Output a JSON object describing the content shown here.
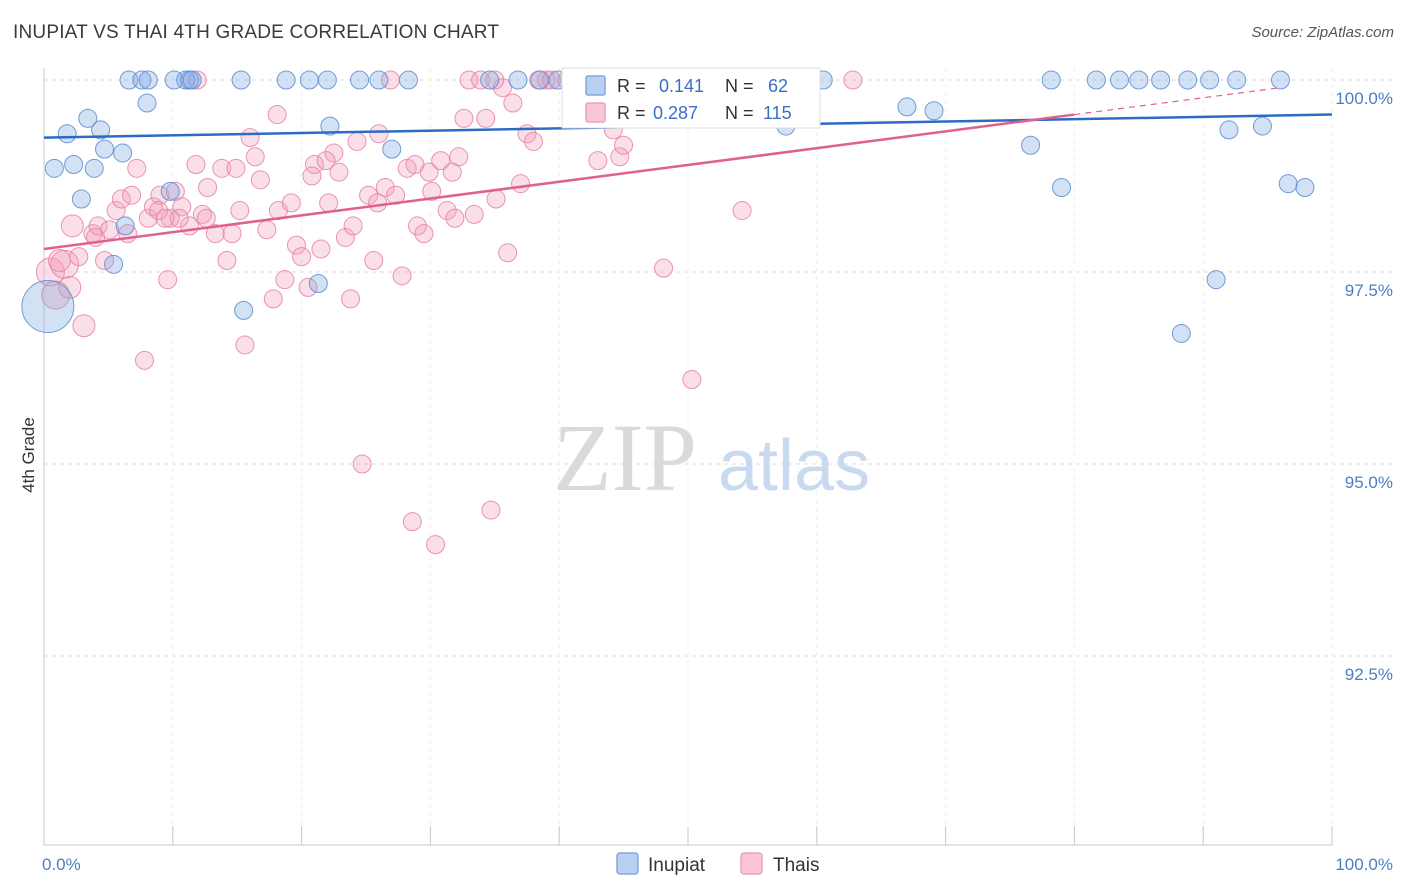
{
  "title": "INUPIAT VS THAI 4TH GRADE CORRELATION CHART",
  "source": "Source: ZipAtlas.com",
  "watermark": {
    "zip": "ZIP",
    "atlas": "atlas"
  },
  "colors": {
    "inupiat": "#7fa8e0",
    "inupiat_line": "#2a6cc4",
    "thais": "#f0a0bc",
    "thais_line": "#e0608f",
    "grid": "#dcdcdc",
    "tick_label": "#4a7fc8"
  },
  "legend": {
    "rows": [
      {
        "r_label": "R =",
        "r_value": "0.141",
        "n_label": "N =",
        "n_value": "62"
      },
      {
        "r_label": "R =",
        "r_value": "0.287",
        "n_label": "N =",
        "n_value": "115"
      }
    ]
  },
  "bottom_legend": [
    "Inupiat",
    "Thais"
  ],
  "chart_data": {
    "type": "scatter",
    "ylabel": "4th Grade",
    "xlim": [
      0,
      100
    ],
    "ylim": [
      90.0,
      100.3
    ],
    "x_tick_labels": [
      "0.0%",
      "100.0%"
    ],
    "y_ticks": [
      {
        "value": 100.0,
        "label": "100.0%"
      },
      {
        "value": 97.5,
        "label": "97.5%"
      },
      {
        "value": 95.0,
        "label": "95.0%"
      },
      {
        "value": 92.5,
        "label": "92.5%"
      }
    ],
    "grid": true,
    "series": [
      {
        "name": "Inupiat",
        "trend": {
          "x0": 0,
          "y0": 99.25,
          "x1": 100,
          "y1": 99.55
        },
        "points": [
          [
            0.3,
            97.05,
            26
          ],
          [
            0.8,
            98.85,
            9
          ],
          [
            1.8,
            99.3,
            9
          ],
          [
            2.3,
            98.9,
            9
          ],
          [
            2.9,
            98.45,
            9
          ],
          [
            3.4,
            99.5,
            9
          ],
          [
            3.9,
            98.85,
            9
          ],
          [
            4.4,
            99.35,
            9
          ],
          [
            4.7,
            99.1,
            9
          ],
          [
            5.4,
            97.6,
            9
          ],
          [
            6.1,
            99.05,
            9
          ],
          [
            6.3,
            98.1,
            9
          ],
          [
            6.6,
            100,
            9
          ],
          [
            7.6,
            100,
            9
          ],
          [
            8.0,
            99.7,
            9
          ],
          [
            8.1,
            100,
            9
          ],
          [
            9.8,
            98.55,
            9
          ],
          [
            10.1,
            100,
            9
          ],
          [
            11.0,
            100,
            9
          ],
          [
            11.3,
            100,
            9
          ],
          [
            11.5,
            100,
            9
          ],
          [
            15.3,
            100,
            9
          ],
          [
            15.5,
            97.0,
            9
          ],
          [
            18.8,
            100,
            9
          ],
          [
            20.6,
            100,
            9
          ],
          [
            21.3,
            97.35,
            9
          ],
          [
            22.0,
            100,
            9
          ],
          [
            22.2,
            99.4,
            9
          ],
          [
            24.5,
            100,
            9
          ],
          [
            26.0,
            100,
            9
          ],
          [
            27.0,
            99.1,
            9
          ],
          [
            28.3,
            100,
            9
          ],
          [
            34.6,
            100,
            9
          ],
          [
            36.8,
            100,
            9
          ],
          [
            38.5,
            100,
            9
          ],
          [
            39.9,
            100,
            9
          ],
          [
            46.0,
            100,
            9
          ],
          [
            56.6,
            100,
            9
          ],
          [
            57.6,
            99.4,
            9
          ],
          [
            59.4,
            100,
            9
          ],
          [
            60.5,
            100,
            9
          ],
          [
            67.0,
            99.65,
            9
          ],
          [
            69.1,
            99.6,
            9
          ],
          [
            76.6,
            99.15,
            9
          ],
          [
            78.2,
            100,
            9
          ],
          [
            79.0,
            98.6,
            9
          ],
          [
            81.7,
            100,
            9
          ],
          [
            83.5,
            100,
            9
          ],
          [
            85.0,
            100,
            9
          ],
          [
            86.7,
            100,
            9
          ],
          [
            88.3,
            96.7,
            9
          ],
          [
            88.8,
            100,
            9
          ],
          [
            90.5,
            100,
            9
          ],
          [
            91.0,
            97.4,
            9
          ],
          [
            92.0,
            99.35,
            9
          ],
          [
            92.6,
            100,
            9
          ],
          [
            94.6,
            99.4,
            9
          ],
          [
            96.6,
            98.65,
            9
          ],
          [
            97.9,
            98.6,
            9
          ],
          [
            96.0,
            100,
            9
          ]
        ]
      },
      {
        "name": "Thais",
        "trend": {
          "x0": 0,
          "y0": 97.8,
          "x1": 80,
          "y1": 99.55,
          "dash_x1": 96,
          "dash_y1": 99.9
        },
        "points": [
          [
            0.5,
            97.5,
            14
          ],
          [
            0.9,
            97.2,
            14
          ],
          [
            1.6,
            97.6,
            14
          ],
          [
            2.2,
            98.1,
            11
          ],
          [
            2.7,
            97.7,
            9
          ],
          [
            3.1,
            96.8,
            11
          ],
          [
            3.8,
            98.0,
            9
          ],
          [
            4.2,
            98.1,
            9
          ],
          [
            4.7,
            97.65,
            9
          ],
          [
            5.1,
            98.05,
            9
          ],
          [
            5.6,
            98.3,
            9
          ],
          [
            6.0,
            98.45,
            9
          ],
          [
            6.5,
            98.0,
            9
          ],
          [
            7.2,
            98.85,
            9
          ],
          [
            7.8,
            96.35,
            9
          ],
          [
            8.1,
            98.2,
            9
          ],
          [
            8.5,
            98.35,
            9
          ],
          [
            9.0,
            98.5,
            9
          ],
          [
            9.6,
            97.4,
            9
          ],
          [
            9.8,
            98.2,
            9
          ],
          [
            10.2,
            98.55,
            9
          ],
          [
            10.7,
            98.35,
            9
          ],
          [
            11.3,
            98.1,
            9
          ],
          [
            11.8,
            98.9,
            9
          ],
          [
            12.3,
            98.25,
            9
          ],
          [
            12.7,
            98.6,
            9
          ],
          [
            13.3,
            98.0,
            9
          ],
          [
            13.8,
            98.85,
            9
          ],
          [
            14.2,
            97.65,
            9
          ],
          [
            14.6,
            98.0,
            9
          ],
          [
            15.2,
            98.3,
            9
          ],
          [
            15.6,
            96.55,
            9
          ],
          [
            16.0,
            99.25,
            9
          ],
          [
            16.4,
            99.0,
            9
          ],
          [
            16.8,
            98.7,
            9
          ],
          [
            17.3,
            98.05,
            9
          ],
          [
            17.8,
            97.15,
            9
          ],
          [
            18.2,
            98.3,
            9
          ],
          [
            18.7,
            97.4,
            9
          ],
          [
            19.2,
            98.4,
            9
          ],
          [
            19.6,
            97.85,
            9
          ],
          [
            20.0,
            97.7,
            9
          ],
          [
            20.5,
            97.3,
            9
          ],
          [
            21.0,
            98.9,
            9
          ],
          [
            21.5,
            97.8,
            9
          ],
          [
            22.1,
            98.4,
            9
          ],
          [
            22.5,
            99.05,
            9
          ],
          [
            22.9,
            98.8,
            9
          ],
          [
            23.4,
            97.95,
            9
          ],
          [
            23.8,
            97.15,
            9
          ],
          [
            24.3,
            99.2,
            9
          ],
          [
            24.7,
            95.0,
            9
          ],
          [
            25.2,
            98.5,
            9
          ],
          [
            25.6,
            97.65,
            9
          ],
          [
            26.0,
            99.3,
            9
          ],
          [
            26.5,
            98.6,
            9
          ],
          [
            26.9,
            100,
            9
          ],
          [
            27.3,
            98.5,
            9
          ],
          [
            27.8,
            97.45,
            9
          ],
          [
            28.2,
            98.85,
            9
          ],
          [
            28.6,
            94.25,
            9
          ],
          [
            29.0,
            98.1,
            9
          ],
          [
            29.5,
            98.0,
            9
          ],
          [
            29.9,
            98.8,
            9
          ],
          [
            30.4,
            93.95,
            9
          ],
          [
            30.8,
            98.95,
            9
          ],
          [
            31.3,
            98.3,
            9
          ],
          [
            31.7,
            98.8,
            9
          ],
          [
            32.2,
            99.0,
            9
          ],
          [
            32.6,
            99.5,
            9
          ],
          [
            33.0,
            100,
            9
          ],
          [
            33.4,
            98.25,
            9
          ],
          [
            33.9,
            100,
            9
          ],
          [
            34.3,
            99.5,
            9
          ],
          [
            34.7,
            94.4,
            9
          ],
          [
            35.1,
            98.45,
            9
          ],
          [
            35.6,
            99.9,
            9
          ],
          [
            36.0,
            97.75,
            9
          ],
          [
            36.4,
            99.7,
            9
          ],
          [
            37.0,
            98.65,
            9
          ],
          [
            37.5,
            99.3,
            9
          ],
          [
            38.0,
            99.2,
            9
          ],
          [
            38.4,
            100,
            9
          ],
          [
            39.0,
            100,
            9
          ],
          [
            39.4,
            100,
            9
          ],
          [
            40.6,
            100,
            9
          ],
          [
            42.0,
            100,
            9
          ],
          [
            43.0,
            98.95,
            9
          ],
          [
            44.2,
            99.35,
            9
          ],
          [
            44.7,
            99.0,
            9
          ],
          [
            45.0,
            99.15,
            9
          ],
          [
            47.4,
            100,
            9
          ],
          [
            48.1,
            97.55,
            9
          ],
          [
            50.3,
            96.1,
            9
          ],
          [
            54.2,
            98.3,
            9
          ],
          [
            62.8,
            100,
            9
          ],
          [
            10.5,
            98.2,
            9
          ],
          [
            14.9,
            98.85,
            9
          ],
          [
            20.8,
            98.75,
            9
          ],
          [
            35.0,
            100,
            9
          ],
          [
            41.0,
            100,
            9
          ],
          [
            43.8,
            100,
            9
          ],
          [
            11.9,
            100,
            9
          ],
          [
            12.6,
            98.2,
            9
          ],
          [
            18.1,
            99.55,
            9
          ],
          [
            21.9,
            98.95,
            9
          ],
          [
            24.0,
            98.1,
            9
          ],
          [
            25.9,
            98.4,
            9
          ],
          [
            28.8,
            98.9,
            9
          ],
          [
            30.1,
            98.55,
            9
          ],
          [
            31.9,
            98.2,
            9
          ],
          [
            6.8,
            98.5,
            9
          ],
          [
            8.9,
            98.3,
            9
          ],
          [
            2.0,
            97.3,
            11
          ],
          [
            1.2,
            97.65,
            11
          ],
          [
            4.0,
            97.95,
            9
          ],
          [
            9.4,
            98.2,
            9
          ]
        ]
      }
    ]
  }
}
